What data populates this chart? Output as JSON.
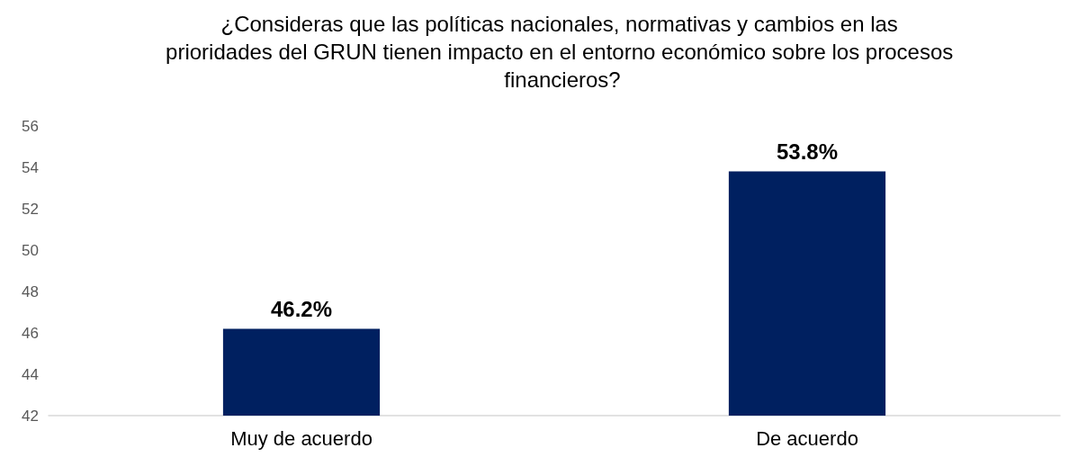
{
  "chart_data": {
    "type": "bar",
    "title": "¿Consideras que las políticas nacionales, normativas y cambios en las prioridades del GRUN tienen impacto en el entorno económico sobre los procesos financieros?",
    "categories": [
      "Muy de acuerdo",
      "De acuerdo"
    ],
    "values": [
      46.2,
      53.8
    ],
    "value_labels": [
      "46.2%",
      "53.8%"
    ],
    "color": "#002060",
    "ylim": [
      42,
      56
    ],
    "yticks": [
      42,
      44,
      46,
      48,
      50,
      52,
      54,
      56
    ],
    "grid": false
  }
}
